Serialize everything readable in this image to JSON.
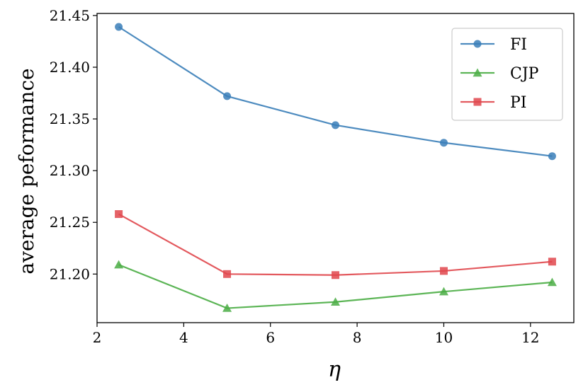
{
  "chart_data": {
    "type": "line",
    "xlabel": "η",
    "ylabel": "average peformance",
    "xlim": [
      2,
      13
    ],
    "ylim": [
      21.153,
      21.452
    ],
    "x": [
      2.5,
      5,
      7.5,
      10,
      12.5
    ],
    "x_ticks": [
      "2",
      "4",
      "6",
      "8",
      "10",
      "12"
    ],
    "y_ticks": [
      "21.20",
      "21.25",
      "21.30",
      "21.35",
      "21.40",
      "21.45"
    ],
    "legend_position": "top-right",
    "grid": false,
    "series": [
      {
        "name": "FI",
        "color": "#3a7eb8",
        "marker": "circle",
        "values": [
          21.439,
          21.372,
          21.344,
          21.327,
          21.314
        ]
      },
      {
        "name": "CJP",
        "color": "#4aad44",
        "marker": "triangle",
        "values": [
          21.209,
          21.167,
          21.173,
          21.183,
          21.192
        ]
      },
      {
        "name": "PI",
        "color": "#e0474c",
        "marker": "square",
        "values": [
          21.258,
          21.2,
          21.199,
          21.203,
          21.212
        ]
      }
    ]
  }
}
